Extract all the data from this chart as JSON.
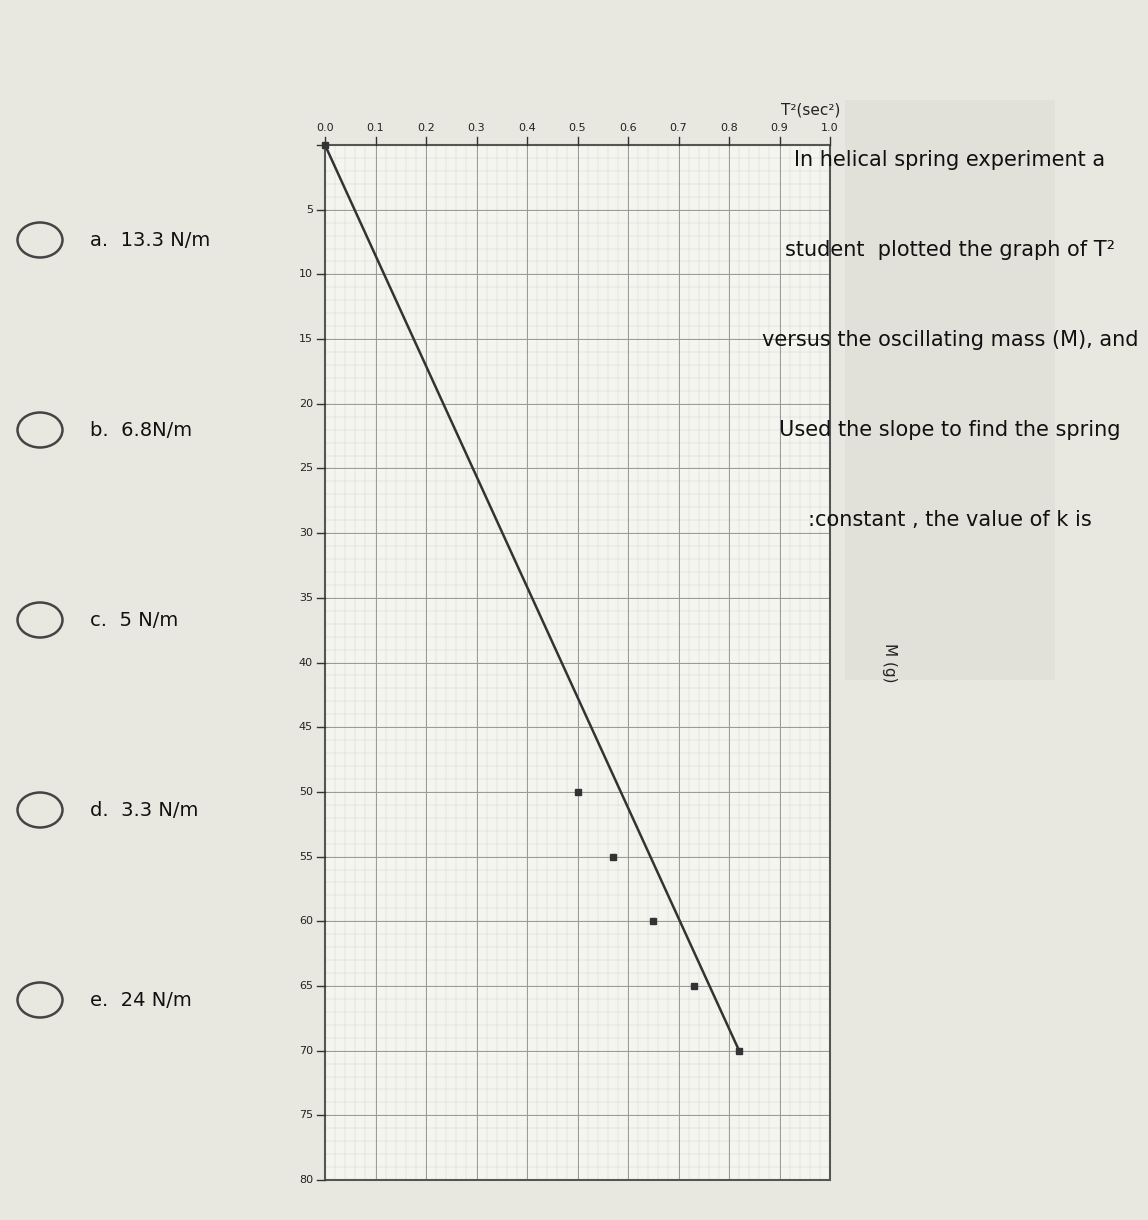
{
  "title_question": "In helical spring experiment a\nstudent  plotted the graph of T²\nversus the oscillating mass (M), and\nUsed the slope to find the spring\n:constant , the value of k is",
  "ylabel": "T²(sec²)",
  "xlabel": "M (g)",
  "xlim": [
    0,
    80
  ],
  "ylim": [
    0.0,
    1.0
  ],
  "xticks": [
    0,
    5,
    10,
    15,
    20,
    25,
    30,
    35,
    40,
    45,
    50,
    55,
    60,
    65,
    70,
    75,
    80
  ],
  "ytick_values": [
    0.0,
    0.1,
    0.2,
    0.3,
    0.4,
    0.5,
    0.6,
    0.7,
    0.8,
    0.9,
    1.0
  ],
  "data_points_x": [
    0,
    50,
    55,
    60,
    65,
    70
  ],
  "data_points_y": [
    0.0,
    0.5,
    0.57,
    0.65,
    0.73,
    0.82
  ],
  "line_x": [
    0,
    70
  ],
  "line_y": [
    0.0,
    0.82
  ],
  "marker_color": "#333333",
  "line_color": "#333333",
  "minor_grid_color": "#cccccc",
  "major_grid_color": "#999999",
  "bg_color": "#e8e8e0",
  "plot_bg_color": "#f5f5f0",
  "options": [
    "a.  13.3 N/m",
    "b.  6.8N/m",
    "c.  5 N/m",
    "d.  3.3 N/m",
    "e.  24 N/m"
  ],
  "title_fontsize": 15,
  "label_fontsize": 11,
  "tick_fontsize": 8,
  "option_fontsize": 14
}
